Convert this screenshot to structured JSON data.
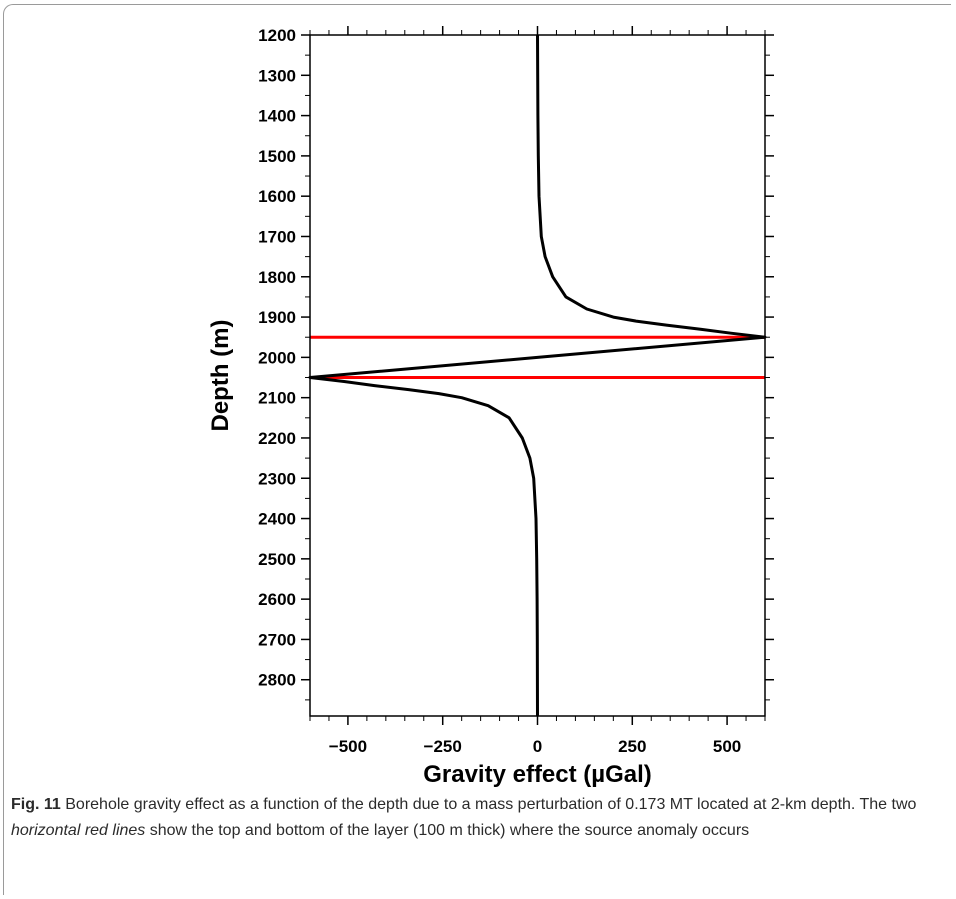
{
  "chart_data": {
    "type": "line",
    "xlabel": "Gravity effect (µGal)",
    "ylabel": "Depth (m)",
    "xlim": [
      -600,
      600
    ],
    "ylim": [
      1200,
      2890
    ],
    "y_inverted": true,
    "x_ticks": [
      "-500",
      "-250",
      "0",
      "250",
      "500"
    ],
    "x_tick_values": [
      -500,
      -250,
      0,
      250,
      500
    ],
    "y_ticks": [
      "1200",
      "1300",
      "1400",
      "1500",
      "1600",
      "1700",
      "1800",
      "1900",
      "2000",
      "2100",
      "2200",
      "2300",
      "2400",
      "2500",
      "2600",
      "2700",
      "2800"
    ],
    "y_tick_values": [
      1200,
      1300,
      1400,
      1500,
      1600,
      1700,
      1800,
      1900,
      2000,
      2100,
      2200,
      2300,
      2400,
      2500,
      2600,
      2700,
      2800
    ],
    "series": [
      {
        "color": "#000000",
        "points": [
          [
            0,
            1200
          ],
          [
            0.5,
            1300
          ],
          [
            1,
            1400
          ],
          [
            2,
            1500
          ],
          [
            4,
            1600
          ],
          [
            10,
            1700
          ],
          [
            20,
            1750
          ],
          [
            40,
            1800
          ],
          [
            75,
            1850
          ],
          [
            130,
            1880
          ],
          [
            200,
            1900
          ],
          [
            260,
            1910
          ],
          [
            340,
            1920
          ],
          [
            430,
            1930
          ],
          [
            510,
            1940
          ],
          [
            600,
            1950
          ],
          [
            0,
            2000
          ],
          [
            -600,
            2050
          ],
          [
            -510,
            2060
          ],
          [
            -430,
            2070
          ],
          [
            -340,
            2080
          ],
          [
            -260,
            2090
          ],
          [
            -200,
            2100
          ],
          [
            -130,
            2120
          ],
          [
            -75,
            2150
          ],
          [
            -40,
            2200
          ],
          [
            -20,
            2250
          ],
          [
            -10,
            2300
          ],
          [
            -4,
            2400
          ],
          [
            -2,
            2500
          ],
          [
            -1,
            2600
          ],
          [
            -0.5,
            2700
          ],
          [
            0,
            2890
          ]
        ]
      }
    ],
    "hlines": [
      {
        "y": 1950,
        "color": "#ff0000"
      },
      {
        "y": 2050,
        "color": "#ff0000"
      }
    ]
  },
  "caption": {
    "label": "Fig. 11",
    "text_1": " Borehole gravity effect as a function of the depth due to a mass perturbation of 0.173 MT located at 2-km depth. The two ",
    "text_italic": "horizontal red lines",
    "text_2": " show the top and bottom of the layer (100 m thick) where the source anomaly occurs"
  }
}
